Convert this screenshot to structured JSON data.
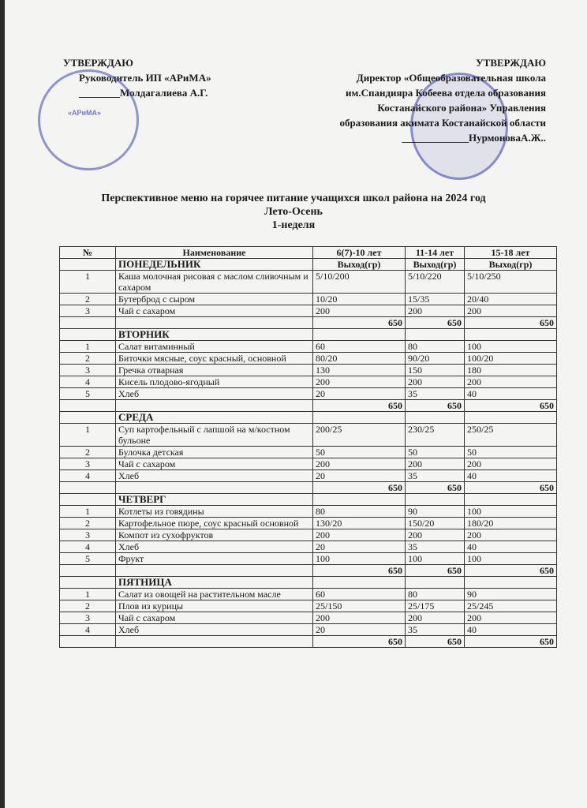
{
  "approve_left": {
    "heading": "УТВЕРЖДАЮ",
    "line1": "Руководитель ИП «АРиМА»",
    "line2": "________Молдагалиева А.Г.",
    "stamp_text": "«АРиМА»"
  },
  "approve_right": {
    "heading": "УТВЕРЖДАЮ",
    "line1": "Директор «Общеобразовательная школа",
    "line2": "им.Спандияра Кобеева отдела образования",
    "line3": "Костанайского района» Управления",
    "line4": "образования акимата Костанайской области",
    "line5": "_____________НурмоноваА.Ж.."
  },
  "title": {
    "line1": "Перспективное меню на горячее питание учащихся школ района на 2024 год",
    "line2": "Лето-Осень",
    "line3": "1-неделя"
  },
  "table": {
    "headers": [
      "№",
      "Наименование",
      "6(7)-10 лет",
      "11-14 лет",
      "15-18 лет"
    ],
    "unit": "Выход(гр)",
    "days": [
      {
        "name": "ПОНЕДЕЛЬНИК",
        "items": [
          {
            "n": "1",
            "name": "Каша молочная рисовая с маслом сливочным и сахаром",
            "v": [
              "5/10/200",
              "5/10/220",
              "5/10/250"
            ]
          },
          {
            "n": "2",
            "name": "Бутерброд с сыром",
            "v": [
              "10/20",
              "15/35",
              "20/40"
            ]
          },
          {
            "n": "3",
            "name": "Чай с сахаром",
            "v": [
              "200",
              "200",
              "200"
            ]
          }
        ],
        "total": [
          "650",
          "650",
          "650"
        ]
      },
      {
        "name": "ВТОРНИК",
        "items": [
          {
            "n": "1",
            "name": "Салат витаминный",
            "v": [
              "60",
              "80",
              "100"
            ]
          },
          {
            "n": "2",
            "name": "Биточки мясные, соус красный, основной",
            "v": [
              "80/20",
              "90/20",
              "100/20"
            ]
          },
          {
            "n": "3",
            "name": "Гречка отварная",
            "v": [
              "130",
              "150",
              "180"
            ]
          },
          {
            "n": "4",
            "name": "Кисель плодово-ягодный",
            "v": [
              "200",
              "200",
              "200"
            ]
          },
          {
            "n": "5",
            "name": "Хлеб",
            "v": [
              "20",
              "35",
              "40"
            ]
          }
        ],
        "total": [
          "650",
          "650",
          "650"
        ]
      },
      {
        "name": "СРЕДА",
        "items": [
          {
            "n": "1",
            "name": "Суп картофельный с лапшой на м/костном бульоне",
            "v": [
              "200/25",
              "230/25",
              "250/25"
            ]
          },
          {
            "n": "2",
            "name": "Булочка детская",
            "v": [
              "50",
              "50",
              "50"
            ]
          },
          {
            "n": "3",
            "name": "Чай с сахаром",
            "v": [
              "200",
              "200",
              "200"
            ]
          },
          {
            "n": "4",
            "name": "Хлеб",
            "v": [
              "20",
              "35",
              "40"
            ]
          }
        ],
        "total": [
          "650",
          "650",
          "650"
        ]
      },
      {
        "name": "ЧЕТВЕРГ",
        "items": [
          {
            "n": "1",
            "name": "Котлеты из говядины",
            "v": [
              "80",
              "90",
              "100"
            ]
          },
          {
            "n": "2",
            "name": "Картофельное пюре, соус красный основной",
            "v": [
              "130/20",
              "150/20",
              "180/20"
            ]
          },
          {
            "n": "3",
            "name": "Компот из сухофруктов",
            "v": [
              "200",
              "200",
              "200"
            ]
          },
          {
            "n": "4",
            "name": "Хлеб",
            "v": [
              "20",
              "35",
              "40"
            ]
          },
          {
            "n": "5",
            "name": "Фрукт",
            "v": [
              "100",
              "100",
              "100"
            ]
          }
        ],
        "total": [
          "650",
          "650",
          "650"
        ]
      },
      {
        "name": "ПЯТНИЦА",
        "items": [
          {
            "n": "1",
            "name": "Салат из овощей на растительном масле",
            "v": [
              "60",
              "80",
              "90"
            ]
          },
          {
            "n": "2",
            "name": "Плов из курицы",
            "v": [
              "25/150",
              "25/175",
              "25/245"
            ]
          },
          {
            "n": "3",
            "name": "Чай с сахаром",
            "v": [
              "200",
              "200",
              "200"
            ]
          },
          {
            "n": "4",
            "name": "Хлеб",
            "v": [
              "20",
              "35",
              "40"
            ]
          }
        ],
        "total": [
          "650",
          "650",
          "650"
        ]
      }
    ]
  }
}
